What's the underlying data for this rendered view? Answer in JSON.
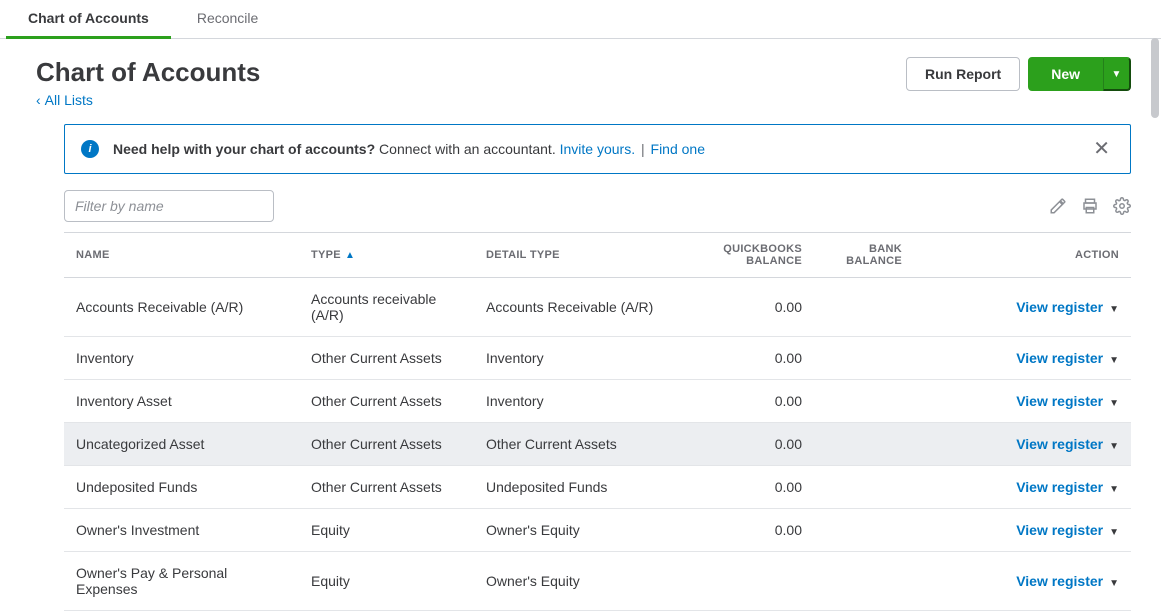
{
  "tabs": [
    {
      "label": "Chart of Accounts",
      "active": true
    },
    {
      "label": "Reconcile",
      "active": false
    }
  ],
  "page_title": "Chart of Accounts",
  "breadcrumb_label": "All Lists",
  "buttons": {
    "run_report": "Run Report",
    "new": "New"
  },
  "banner": {
    "bold": "Need help with your chart of accounts?",
    "text": "Connect with an accountant.",
    "link1": "Invite yours.",
    "link2": "Find one"
  },
  "filter_placeholder": "Filter by name",
  "columns": {
    "name": "NAME",
    "type": "TYPE",
    "detail": "DETAIL TYPE",
    "qb_balance": "QUICKBOOKS BALANCE",
    "bank_balance": "BANK BALANCE",
    "action": "ACTION"
  },
  "action_label": "View register",
  "rows": [
    {
      "name": "Accounts Receivable (A/R)",
      "type": "Accounts receivable (A/R)",
      "detail": "Accounts Receivable (A/R)",
      "qb": "0.00",
      "bank": "",
      "selected": false
    },
    {
      "name": "Inventory",
      "type": "Other Current Assets",
      "detail": "Inventory",
      "qb": "0.00",
      "bank": "",
      "selected": false
    },
    {
      "name": "Inventory Asset",
      "type": "Other Current Assets",
      "detail": "Inventory",
      "qb": "0.00",
      "bank": "",
      "selected": false
    },
    {
      "name": "Uncategorized Asset",
      "type": "Other Current Assets",
      "detail": "Other Current Assets",
      "qb": "0.00",
      "bank": "",
      "selected": true
    },
    {
      "name": "Undeposited Funds",
      "type": "Other Current Assets",
      "detail": "Undeposited Funds",
      "qb": "0.00",
      "bank": "",
      "selected": false
    },
    {
      "name": "Owner's Investment",
      "type": "Equity",
      "detail": "Owner's Equity",
      "qb": "0.00",
      "bank": "",
      "selected": false
    },
    {
      "name": "Owner's Pay & Personal Expenses",
      "type": "Equity",
      "detail": "Owner's Equity",
      "qb": "",
      "bank": "",
      "selected": false
    }
  ],
  "colors": {
    "accent_green": "#2ca01c",
    "link_blue": "#0077c5",
    "border": "#d4d7dc",
    "text": "#393a3d",
    "muted": "#6b6c72"
  }
}
